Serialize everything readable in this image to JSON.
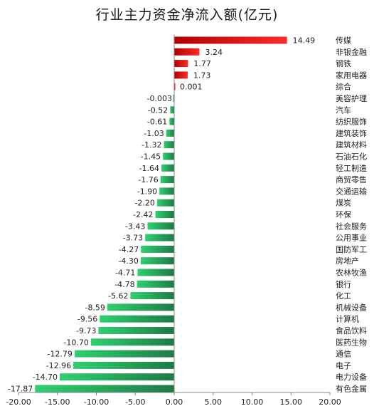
{
  "chart_data": {
    "type": "bar",
    "orientation": "horizontal",
    "title": "行业主力资金净流入额(亿元)",
    "xlabel": "",
    "ylabel": "",
    "xlim": [
      -20,
      20
    ],
    "x_ticks": [
      "-20.00",
      "-15.00",
      "-10.00",
      "-5.00",
      "0.00",
      "5.00",
      "10.00",
      "15.00",
      "20.00"
    ],
    "grid": false,
    "legend": "none",
    "categories": [
      "传媒",
      "非银金融",
      "钢铁",
      "家用电器",
      "综合",
      "美容护理",
      "汽车",
      "纺织服饰",
      "建筑装饰",
      "建筑材料",
      "石油石化",
      "轻工制造",
      "商贸零售",
      "交通运输",
      "煤炭",
      "环保",
      "社会服务",
      "公用事业",
      "国防军工",
      "房地产",
      "农林牧渔",
      "银行",
      "化工",
      "机械设备",
      "计算机",
      "食品饮料",
      "医药生物",
      "通信",
      "电子",
      "电力设备",
      "有色金属"
    ],
    "values": [
      14.49,
      3.24,
      1.77,
      1.73,
      0.001,
      -0.003,
      -0.52,
      -0.61,
      -1.03,
      -1.32,
      -1.45,
      -1.64,
      -1.76,
      -1.9,
      -2.2,
      -2.42,
      -3.43,
      -3.73,
      -4.27,
      -4.3,
      -4.71,
      -4.78,
      -5.62,
      -8.59,
      -9.56,
      -9.73,
      -10.7,
      -12.79,
      -12.96,
      -14.7,
      -17.87
    ],
    "value_labels": [
      "14.49",
      "3.24",
      "1.77",
      "1.73",
      "0.001",
      "-0.003",
      "-0.52",
      "-0.61",
      "-1.03",
      "-1.32",
      "-1.45",
      "-1.64",
      "-1.76",
      "-1.90",
      "-2.20",
      "-2.42",
      "-3.43",
      "-3.73",
      "-4.27",
      "-4.30",
      "-4.71",
      "-4.78",
      "-5.62",
      "-8.59",
      "-9.56",
      "-9.73",
      "-10.70",
      "-12.79",
      "-12.96",
      "-14.70",
      "-17.87"
    ],
    "colors": {
      "positive_dark": "#b00000",
      "positive_light": "#ff2a2a",
      "negative_dark": "#1f7a45",
      "negative_light": "#2fd070",
      "axis": "#888888",
      "text": "#222222"
    }
  }
}
